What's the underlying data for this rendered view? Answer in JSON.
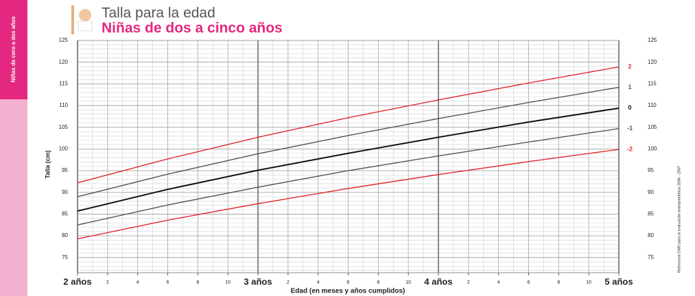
{
  "chart_data": {
    "type": "line",
    "title": "Talla para la edad",
    "subtitle": "Niñas de dos a cinco años",
    "side_tab": "Niñas de cero a dos años",
    "source": "Referencia OMS para la evaluación antropométrica 2006 - 2007",
    "x_label": "Edad (en meses y años cumplidos)",
    "y_label": "Talla (cm)",
    "x": [
      24,
      30,
      36,
      42,
      48,
      54,
      60
    ],
    "xlim": [
      24,
      60
    ],
    "xticks": [
      {
        "value": 24,
        "label": "2 años"
      },
      {
        "value": 26,
        "label": "2"
      },
      {
        "value": 28,
        "label": "4"
      },
      {
        "value": 30,
        "label": "6"
      },
      {
        "value": 32,
        "label": "8"
      },
      {
        "value": 34,
        "label": "10"
      },
      {
        "value": 36,
        "label": "3 años"
      },
      {
        "value": 38,
        "label": "2"
      },
      {
        "value": 40,
        "label": "4"
      },
      {
        "value": 42,
        "label": "6"
      },
      {
        "value": 44,
        "label": "8"
      },
      {
        "value": 46,
        "label": "10"
      },
      {
        "value": 48,
        "label": "4 años"
      },
      {
        "value": 50,
        "label": "2"
      },
      {
        "value": 52,
        "label": "4"
      },
      {
        "value": 54,
        "label": "6"
      },
      {
        "value": 56,
        "label": "8"
      },
      {
        "value": 58,
        "label": "10"
      },
      {
        "value": 60,
        "label": "5 años"
      }
    ],
    "ylim": [
      71.5,
      125
    ],
    "yticks": [
      75,
      80,
      85,
      90,
      95,
      100,
      105,
      110,
      115,
      120,
      125
    ],
    "grid": true,
    "series": [
      {
        "name": "2",
        "color": "#e0282e",
        "values": [
          92.2,
          97.7,
          102.7,
          107.2,
          111.3,
          115.2,
          118.9
        ]
      },
      {
        "name": "1",
        "color": "#555555",
        "values": [
          89.0,
          94.2,
          98.9,
          103.1,
          107.0,
          110.7,
          114.2
        ]
      },
      {
        "name": "0",
        "color": "#111111",
        "values": [
          85.7,
          90.7,
          95.1,
          99.0,
          102.7,
          106.2,
          109.4
        ]
      },
      {
        "name": "-1",
        "color": "#555555",
        "values": [
          82.5,
          87.1,
          91.2,
          95.0,
          98.4,
          101.6,
          104.7
        ]
      },
      {
        "name": "-2",
        "color": "#e0282e",
        "values": [
          79.3,
          83.6,
          87.4,
          90.9,
          94.1,
          97.1,
          99.9
        ]
      }
    ]
  }
}
